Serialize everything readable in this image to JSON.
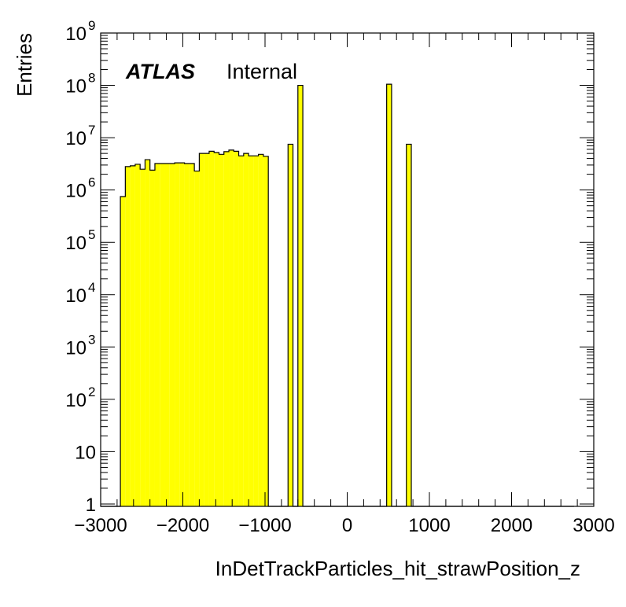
{
  "chart_data": {
    "type": "bar",
    "style": "histogram",
    "title": "",
    "xlabel": "InDetTrackParticles_hit_strawPosition_z",
    "ylabel": "Entries",
    "xlim": [
      -3000,
      3000
    ],
    "ylim": [
      0.9,
      1000000000
    ],
    "log_y": true,
    "grid": false,
    "fill_color": "#ffff00",
    "line_color": "#000000",
    "annotation": {
      "experiment": "ATLAS",
      "status": "Internal"
    },
    "x_ticks": [
      -3000,
      -2000,
      -1000,
      0,
      1000,
      2000,
      3000
    ],
    "x_tick_labels": [
      "−3000",
      "−2000",
      "−1000",
      "0",
      "1000",
      "2000",
      "3000"
    ],
    "y_ticks": [
      {
        "value": 1,
        "base": "1",
        "exp": ""
      },
      {
        "value": 10,
        "base": "10",
        "exp": ""
      },
      {
        "value": 100,
        "base": "10",
        "exp": "2"
      },
      {
        "value": 1000,
        "base": "10",
        "exp": "3"
      },
      {
        "value": 10000,
        "base": "10",
        "exp": "4"
      },
      {
        "value": 100000,
        "base": "10",
        "exp": "5"
      },
      {
        "value": 1000000,
        "base": "10",
        "exp": "6"
      },
      {
        "value": 10000000,
        "base": "10",
        "exp": "7"
      },
      {
        "value": 100000000,
        "base": "10",
        "exp": "8"
      },
      {
        "value": 1000000000,
        "base": "10",
        "exp": "9"
      }
    ],
    "bin_edges_start": -3000,
    "bin_width": 60,
    "values": [
      0,
      0,
      0,
      0,
      750000,
      2800000,
      2900000,
      3100000,
      2500000,
      3800000,
      2400000,
      3200000,
      3200000,
      3200000,
      3200000,
      3300000,
      3300000,
      3200000,
      3200000,
      2300000,
      5000000,
      5000000,
      5500000,
      5200000,
      4800000,
      5400000,
      5800000,
      5500000,
      4500000,
      5000000,
      4500000,
      4500000,
      4800000,
      4400000,
      0,
      0,
      0,
      0,
      7500000,
      0,
      100000000,
      0,
      0,
      0,
      0,
      0,
      0,
      0,
      0,
      0,
      0,
      0,
      0,
      0,
      0,
      0,
      0,
      0,
      105000000,
      0,
      0,
      0,
      7500000,
      0,
      0,
      0,
      0,
      0,
      0,
      0,
      0,
      0,
      0,
      0,
      0,
      0,
      0,
      0,
      0,
      0,
      0,
      0,
      0,
      0,
      0,
      0,
      0,
      0,
      0,
      0,
      0,
      0,
      0,
      0,
      0,
      0
    ]
  }
}
